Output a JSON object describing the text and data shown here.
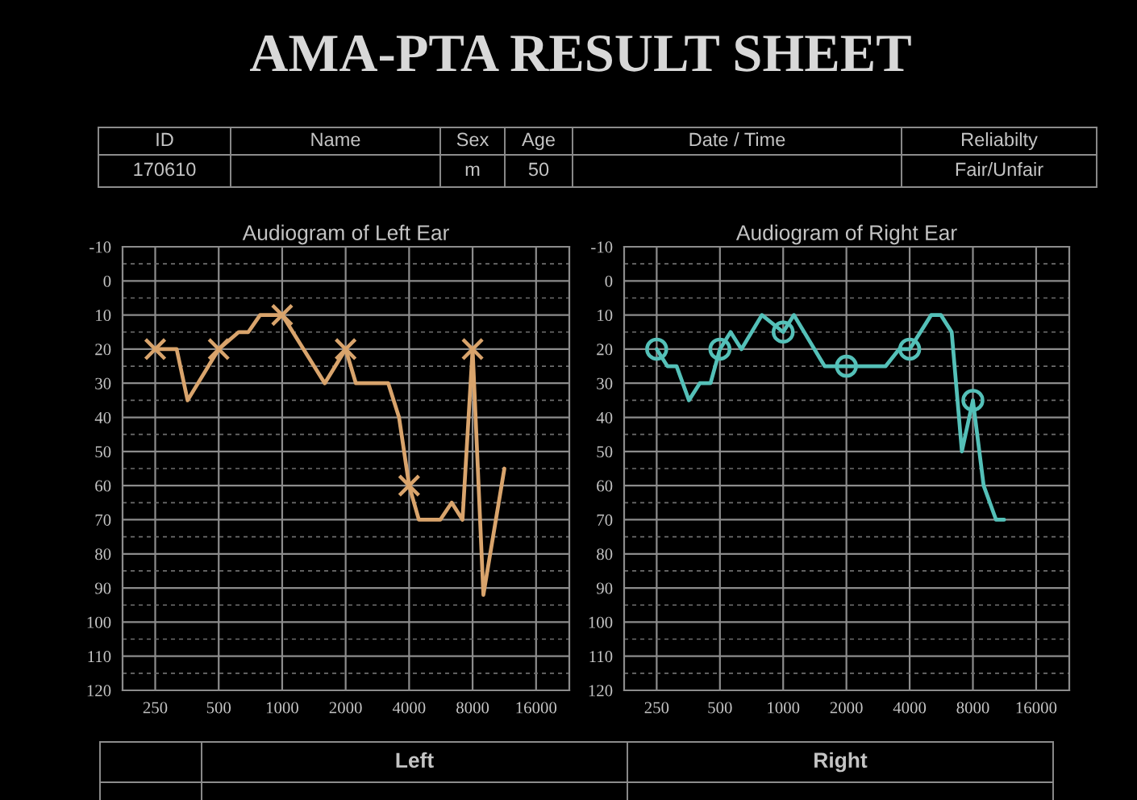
{
  "chart_data": [
    {
      "type": "other",
      "title": "AMA-PTA RESULT SHEET",
      "categories": [
        "ID",
        "Name",
        "Sex",
        "Age",
        "Date / Time",
        "Reliabilty"
      ],
      "value_labels": [
        "170610",
        null,
        "m",
        "50",
        null,
        "Fair/Unfair"
      ]
    },
    {
      "type": "line",
      "title": "Audiogram of Left Ear",
      "log": "x",
      "grid": true,
      "xlim": [
        175,
        23000
      ],
      "xticks": [
        250,
        500,
        1000,
        2000,
        4000,
        8000,
        16000
      ],
      "ylim": [
        120,
        -10
      ],
      "yticks": [
        -10,
        {
          "value": -5,
          "label": null
        },
        0,
        {
          "value": 5,
          "label": null
        },
        10,
        {
          "value": 15,
          "label": null
        },
        20,
        {
          "value": 25,
          "label": null
        },
        30,
        {
          "value": 35,
          "label": null
        },
        40,
        {
          "value": 45,
          "label": null
        },
        50,
        {
          "value": 55,
          "label": null
        },
        60,
        {
          "value": 65,
          "label": null
        },
        70,
        {
          "value": 75,
          "label": null
        },
        80,
        {
          "value": 85,
          "label": null
        },
        90,
        {
          "value": 95,
          "label": null
        },
        100,
        {
          "value": 105,
          "label": null
        },
        110,
        {
          "value": 115,
          "label": null
        },
        120
      ],
      "series": [
        {
          "type": "line",
          "color": "#d9a46c",
          "marker": "none",
          "x": [
            250,
            316,
            356,
            500,
            622,
            691,
            786,
            911,
            1000,
            1592,
            2000,
            2236,
            3184,
            3583,
            4000,
            4448,
            5622,
            6368,
            7165,
            8000,
            9000,
            11320
          ],
          "values": [
            20,
            20,
            35,
            20,
            15,
            15,
            10,
            10,
            10,
            30,
            20,
            30,
            30,
            40,
            60,
            70,
            70,
            65,
            70,
            20,
            92,
            55
          ]
        },
        {
          "type": "scatter",
          "color": "#d9a46c",
          "marker": "cross",
          "x": [
            250,
            500,
            1000,
            2000,
            4000,
            8000
          ],
          "values": [
            20,
            20,
            10,
            20,
            60,
            20
          ]
        }
      ]
    },
    {
      "type": "line",
      "title": "Audiogram of Right Ear",
      "log": "x",
      "grid": true,
      "xlim": [
        175,
        23000
      ],
      "xticks": [
        250,
        500,
        1000,
        2000,
        4000,
        8000,
        16000
      ],
      "ylim": [
        120,
        -10
      ],
      "yticks": [
        -10,
        {
          "value": -5,
          "label": null
        },
        0,
        {
          "value": 5,
          "label": null
        },
        10,
        {
          "value": 15,
          "label": null
        },
        20,
        {
          "value": 25,
          "label": null
        },
        30,
        {
          "value": 35,
          "label": null
        },
        40,
        {
          "value": 45,
          "label": null
        },
        50,
        {
          "value": 55,
          "label": null
        },
        60,
        {
          "value": 65,
          "label": null
        },
        70,
        {
          "value": 75,
          "label": null
        },
        80,
        {
          "value": 85,
          "label": null
        },
        90,
        {
          "value": 95,
          "label": null
        },
        100,
        {
          "value": 105,
          "label": null
        },
        110,
        {
          "value": 115,
          "label": null
        },
        120
      ],
      "series": [
        {
          "type": "line",
          "color": "#54c0b8",
          "marker": "none",
          "x": [
            250,
            281,
            311,
            356,
            401,
            451,
            500,
            562,
            633,
            792,
            1000,
            1125,
            1575,
            2000,
            3076,
            3564,
            4000,
            5064,
            5632,
            6340,
            7089,
            8000,
            9000,
            10310,
            11260
          ],
          "values": [
            20,
            25,
            25,
            35,
            30,
            30,
            20,
            15,
            20,
            10,
            15,
            10,
            25,
            25,
            25,
            20,
            20,
            10,
            10,
            15,
            50,
            35,
            60,
            70,
            70
          ]
        },
        {
          "type": "scatter",
          "color": "#54c0b8",
          "marker": "circle",
          "x": [
            250,
            500,
            1000,
            2000,
            4000,
            8000
          ],
          "values": [
            20,
            20,
            15,
            25,
            20,
            35
          ]
        }
      ]
    },
    {
      "type": "other",
      "categories": [
        null,
        "Left",
        "Right"
      ]
    }
  ]
}
